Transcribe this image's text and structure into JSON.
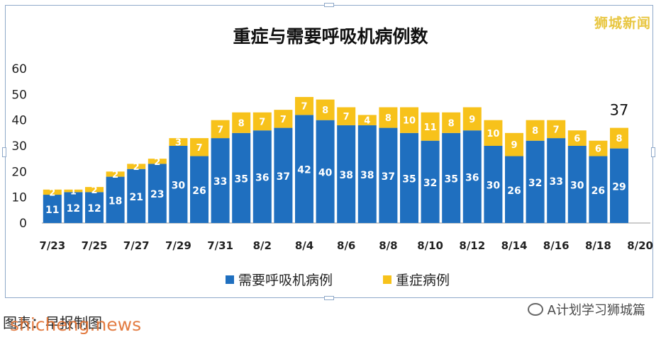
{
  "watermark": "狮城新闻",
  "caption": {
    "left": "图表：早报制图",
    "left_overlay": "shicheng.news",
    "right": "A计划学习狮城篇"
  },
  "colors": {
    "ventilator": "#1f6fbf",
    "icu": "#f7c21b",
    "text": "#222222"
  },
  "chart_data": {
    "type": "bar",
    "stacked": true,
    "title": "重症与需要呼吸机病例数",
    "categories": [
      "7/23",
      "7/24",
      "7/25",
      "7/26",
      "7/27",
      "7/28",
      "7/29",
      "7/30",
      "7/31",
      "8/1",
      "8/2",
      "8/3",
      "8/4",
      "8/5",
      "8/6",
      "8/7",
      "8/8",
      "8/9",
      "8/10",
      "8/11",
      "8/12",
      "8/13",
      "8/14",
      "8/15",
      "8/16",
      "8/17",
      "8/18",
      "8/19"
    ],
    "x_tick_labels": [
      "7/23",
      "7/25",
      "7/27",
      "7/29",
      "7/31",
      "8/2",
      "8/4",
      "8/6",
      "8/8",
      "8/10",
      "8/12",
      "8/14",
      "8/16",
      "8/18",
      "8/20"
    ],
    "series": [
      {
        "name": "需要呼吸机病例",
        "values": [
          11,
          12,
          12,
          18,
          21,
          23,
          30,
          26,
          33,
          35,
          36,
          37,
          42,
          40,
          38,
          38,
          37,
          35,
          32,
          35,
          36,
          30,
          26,
          32,
          33,
          30,
          26,
          29
        ]
      },
      {
        "name": "重症病例",
        "values": [
          2,
          1,
          2,
          2,
          2,
          2,
          3,
          7,
          7,
          8,
          7,
          7,
          7,
          8,
          7,
          4,
          8,
          10,
          11,
          8,
          9,
          10,
          9,
          8,
          7,
          6,
          6,
          8
        ]
      }
    ],
    "annotations": [
      {
        "category": "8/19",
        "text": "37"
      }
    ],
    "yticks": [
      0,
      10,
      20,
      30,
      40,
      50,
      60
    ],
    "ylim": [
      0,
      60
    ],
    "legend_position": "bottom",
    "grid": false
  }
}
